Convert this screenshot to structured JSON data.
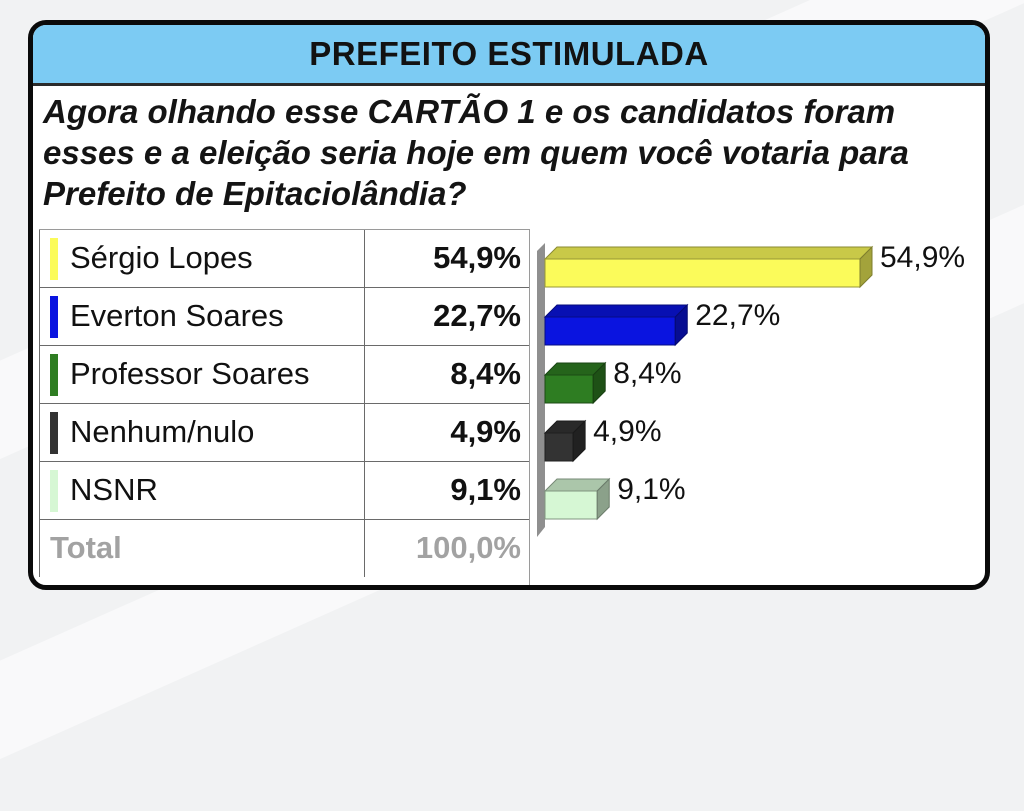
{
  "title": "PREFEITO ESTIMULADA",
  "question": "Agora olhando esse CARTÃO 1 e os candidatos foram esses e a eleição seria hoje em quem você votaria para Prefeito de Epitaciolândia?",
  "rows": [
    {
      "name": "Sérgio Lopes",
      "value": "54,9%",
      "color": "#fbfb5a"
    },
    {
      "name": "Everton Soares",
      "value": "22,7%",
      "color": "#0a14e0"
    },
    {
      "name": "Professor Soares",
      "value": "8,4%",
      "color": "#2e7d22"
    },
    {
      "name": "Nenhum/nulo",
      "value": "4,9%",
      "color": "#333333"
    },
    {
      "name": "NSNR",
      "value": "9,1%",
      "color": "#d6f7d4"
    }
  ],
  "total": {
    "label": "Total",
    "value": "100,0%"
  },
  "chart_data": {
    "type": "bar",
    "orientation": "horizontal",
    "style": "3d",
    "categories": [
      "Sérgio Lopes",
      "Everton Soares",
      "Professor Soares",
      "Nenhum/nulo",
      "NSNR"
    ],
    "values": [
      54.9,
      22.7,
      8.4,
      4.9,
      9.1
    ],
    "data_labels": [
      "54,9%",
      "22,7%",
      "8,4%",
      "4,9%",
      "9,1%"
    ],
    "colors": [
      "#fbfb5a",
      "#0a14e0",
      "#2e7d22",
      "#333333",
      "#d6f7d4"
    ],
    "unit": "%"
  }
}
